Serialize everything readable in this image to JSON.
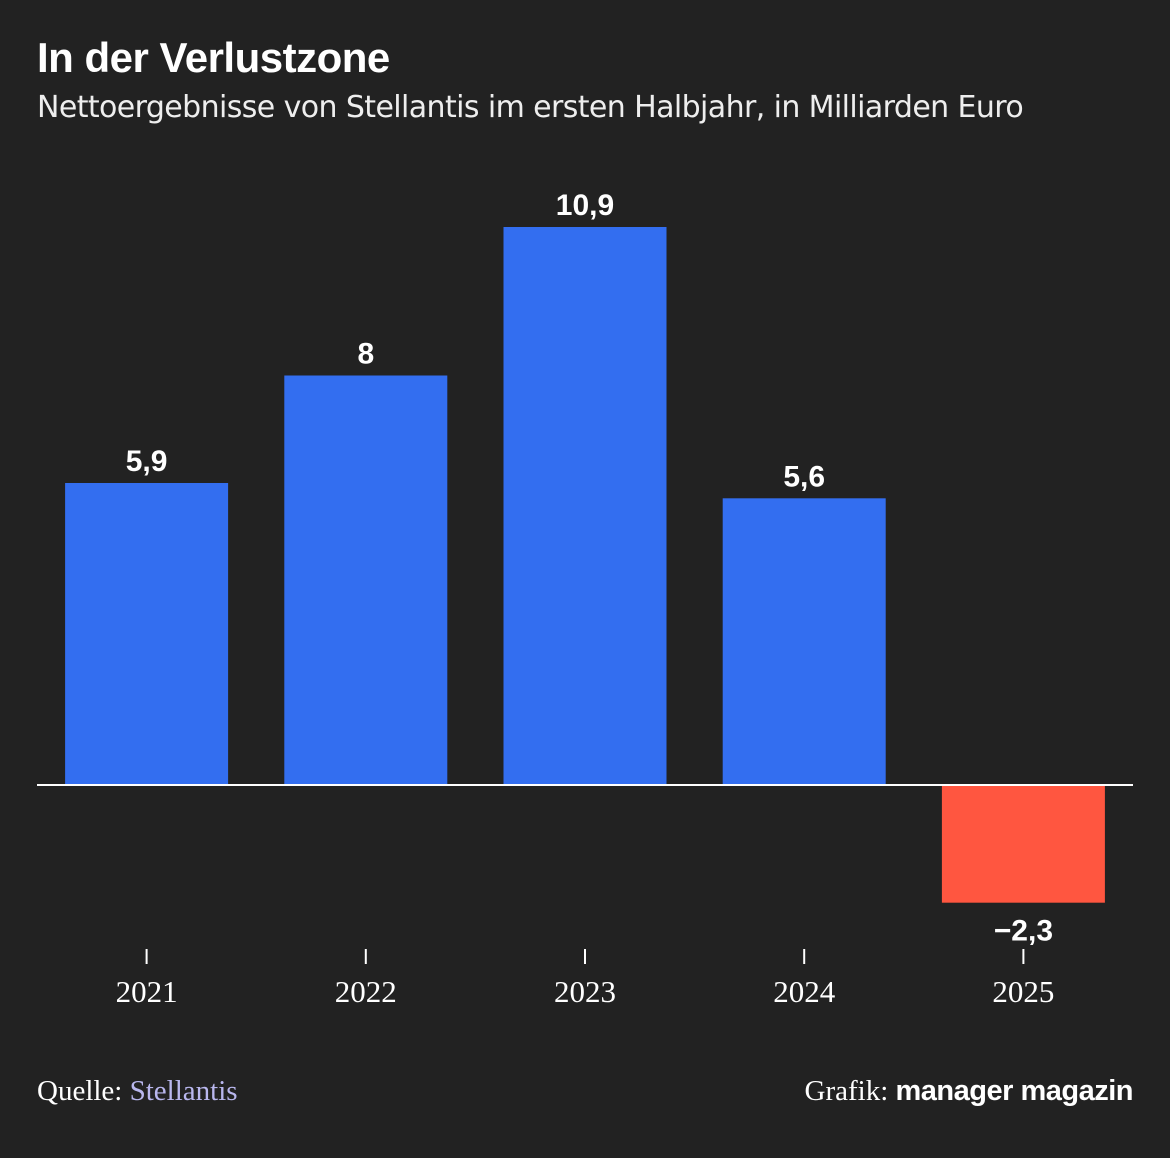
{
  "chart_data": {
    "type": "bar",
    "title": "In der Verlustzone",
    "subtitle": "Nettoergebnisse von Stellantis im ersten Halbjahr, in Milliarden Euro",
    "categories": [
      "2021",
      "2022",
      "2023",
      "2024",
      "2025"
    ],
    "values": [
      5.9,
      8,
      10.9,
      5.6,
      -2.3
    ],
    "value_labels": [
      "5,9",
      "8",
      "10,9",
      "5,6",
      "−2,3"
    ],
    "ylim": [
      -2.3,
      10.9
    ],
    "grid": false,
    "colors": {
      "positive": "#336ef0",
      "negative": "#ff5640",
      "baseline": "#ffffff",
      "background": "#222222"
    }
  },
  "footer": {
    "source_prefix": "Quelle:",
    "source_name": "Stellantis",
    "credit_prefix": "Grafik:",
    "credit_name": "manager magazin"
  }
}
